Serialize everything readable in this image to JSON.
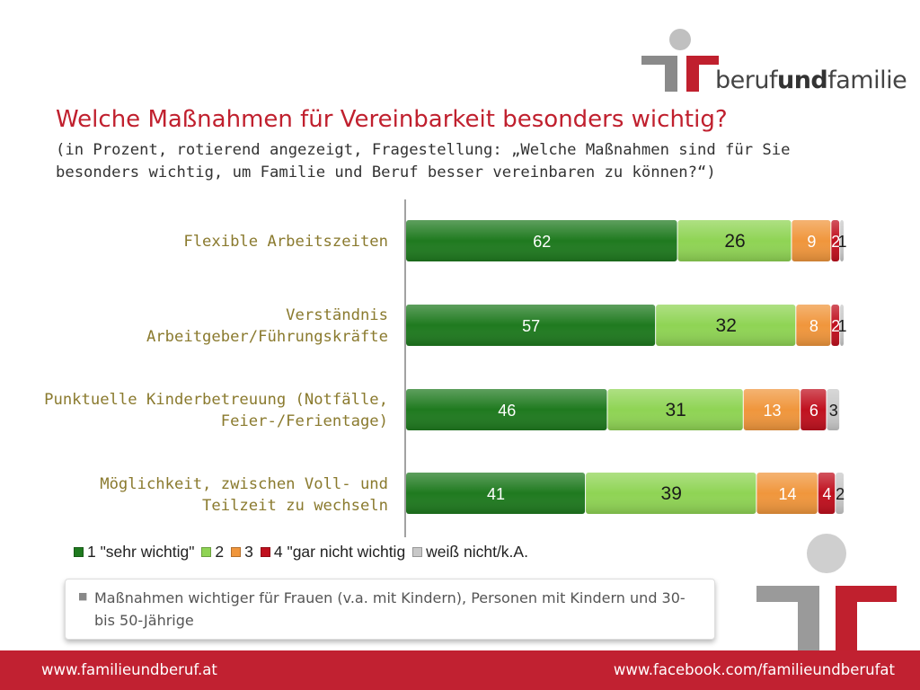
{
  "brand": {
    "logo_text_light_1": "beruf",
    "logo_text_bold": "und",
    "logo_text_light_2": "familie"
  },
  "title": "Welche Maßnahmen für Vereinbarkeit besonders wichtig?",
  "subtitle": "(in Prozent, rotierend angezeigt, Fragestellung: „Welche Maßnahmen sind für Sie besonders wichtig, um Familie und Beruf besser vereinbaren zu können?“)",
  "chart_data": {
    "type": "bar",
    "orientation": "horizontal",
    "stacked": true,
    "categories": [
      "Flexible Arbeitszeiten",
      "Verständnis Arbeitgeber/Führungskräfte",
      "Punktuelle Kinderbetreuung (Notfälle, Feier-/Ferientage)",
      "Möglichkeit, zwischen Voll- und Teilzeit zu wechseln"
    ],
    "category_lines": [
      [
        "Flexible Arbeitszeiten"
      ],
      [
        "Verständnis",
        "Arbeitgeber/Führungskräfte"
      ],
      [
        "Punktuelle Kinderbetreuung (Notfälle,",
        "Feier-/Ferientage)"
      ],
      [
        "Möglichkeit, zwischen Voll- und",
        "Teilzeit zu wechseln"
      ]
    ],
    "series": [
      {
        "name": "1 \"sehr wichtig\"",
        "values": [
          62,
          57,
          46,
          41
        ],
        "color": "#1f7a1f",
        "label_color": "#ffffff"
      },
      {
        "name": "2",
        "values": [
          26,
          32,
          31,
          39
        ],
        "color": "#8fd454",
        "label_color": "#1a1a1a"
      },
      {
        "name": "3",
        "values": [
          9,
          8,
          13,
          14
        ],
        "color": "#f0963c",
        "label_color": "#ffffff"
      },
      {
        "name": "4 \"gar nicht wichtig",
        "values": [
          2,
          2,
          6,
          4
        ],
        "color": "#c0101e",
        "label_color": "#ffffff"
      },
      {
        "name": "weiß nicht/k.A.",
        "values": [
          1,
          1,
          3,
          2
        ],
        "color": "#c8c8c8",
        "label_color": "#1a1a1a"
      }
    ],
    "xlim": [
      0,
      100
    ],
    "legend_position": "bottom",
    "grid": false
  },
  "note": {
    "text": "Maßnahmen wichtiger für Frauen (v.a. mit Kindern), Personen mit Kindern und 30- bis 50-Jährige"
  },
  "footer": {
    "left": "www.familieundberuf.at",
    "right": "www.facebook.com/familieundberufat"
  },
  "colors": {
    "accent_red": "#c12131",
    "logo_gray": "#8a8a8a",
    "logo_red": "#c0202e"
  }
}
